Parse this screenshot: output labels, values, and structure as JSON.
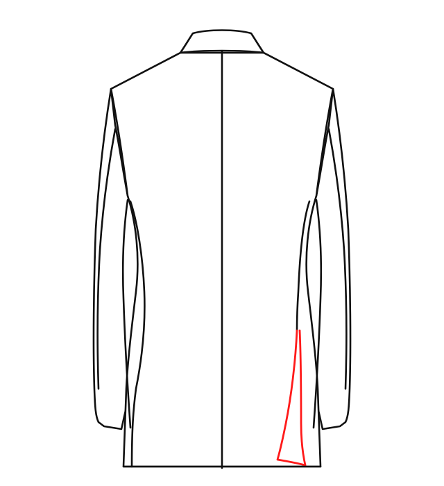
{
  "diagram": {
    "subject": "jacket-back-view",
    "colors": {
      "background": "#ffffff",
      "outline": "#111111",
      "highlight": "#ff1a1a"
    },
    "highlighted_part": "right-side-back-vent"
  }
}
